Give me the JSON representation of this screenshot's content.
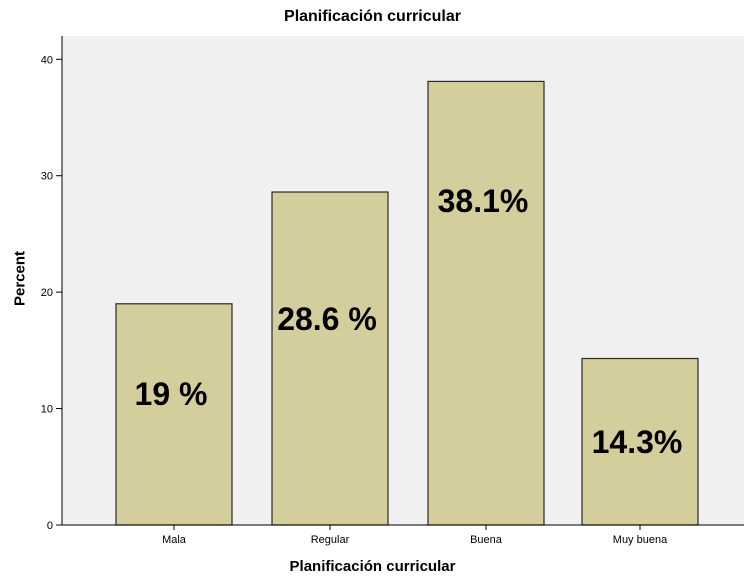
{
  "chart_data": {
    "type": "bar",
    "title": "Planificación curricular",
    "xlabel": "Planificación curricular",
    "ylabel": "Percent",
    "categories": [
      "Mala",
      "Regular",
      "Buena",
      "Muy buena"
    ],
    "values": [
      19.0,
      28.6,
      38.1,
      14.3
    ],
    "data_labels": [
      "19 %",
      "28.6 %",
      "38.1%",
      "14.3%"
    ],
    "yticks": [
      "0",
      "10",
      "20",
      "30",
      "40"
    ],
    "ylim": [
      0,
      42
    ],
    "grid": false,
    "colors": {
      "bar_fill": "#d3ce9b",
      "bar_stroke": "#2a2a2a",
      "plot_background": "#f0f0f0",
      "axis": "#000000"
    }
  }
}
